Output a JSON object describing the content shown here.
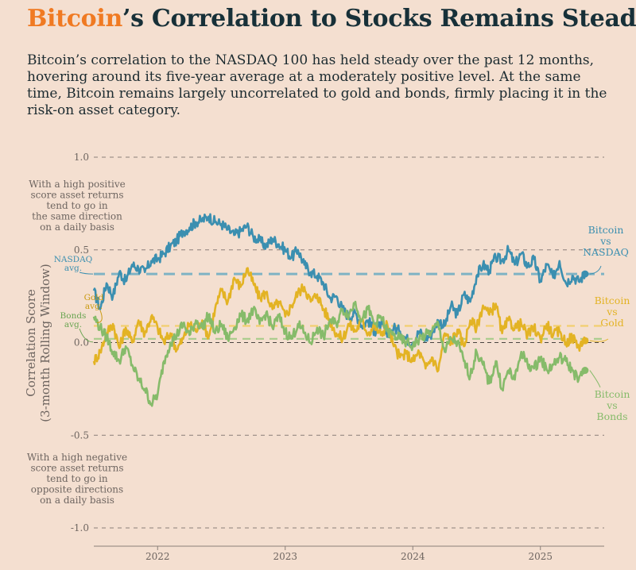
{
  "header": {
    "title_accent": "Bitcoin",
    "title_rest": "’s Correlation to Stocks Remains Steady",
    "subtitle": "Bitcoin’s correlation to the NASDAQ 100 has held steady over the past 12 months, hovering around its five-year average at a moderately positive level. At the same time, Bitcoin remains largely uncorrelated to gold and bonds, firmly placing it in the risk-on asset category."
  },
  "annotations": {
    "positive_note": [
      "With a high positive",
      "score asset returns",
      "tend to go in",
      "the same direction",
      "on a daily basis"
    ],
    "negative_note": [
      "With a high negative",
      "score asset returns",
      "tend to go in",
      "opposite directions",
      "on a daily basis"
    ],
    "nasdaq_avg": [
      "NASDAQ",
      "avg."
    ],
    "gold_avg": [
      "Gold",
      "avg."
    ],
    "bonds_avg": [
      "Bonds",
      "avg."
    ]
  },
  "chart_data": {
    "type": "line",
    "ylabel_lines": [
      "Correlation Score",
      "(3-month Rolling Window)"
    ],
    "ylim": [
      -1.0,
      1.0
    ],
    "yticks": [
      1.0,
      0.5,
      0.0,
      -0.5,
      -1.0
    ],
    "ytick_labels": [
      "1.0",
      "0.5",
      "0.0",
      "-0.5",
      "-1.0"
    ],
    "xlim": [
      2021.5,
      2025.5
    ],
    "xticks": [
      2022,
      2023,
      2024,
      2025
    ],
    "xtick_labels": [
      "2022",
      "2023",
      "2024",
      "2025"
    ],
    "grid": "horizontal dashed",
    "averages": [
      {
        "name": "NASDAQ avg.",
        "value": 0.37,
        "color": "#7fb3c4"
      },
      {
        "name": "Gold avg.",
        "value": 0.09,
        "color": "#f2cf6f"
      },
      {
        "name": "Bonds avg.",
        "value": 0.02,
        "color": "#a8cc8a"
      }
    ],
    "series": [
      {
        "name": "Bitcoin vs NASDAQ",
        "label_lines": [
          "Bitcoin",
          "vs",
          "NASDAQ"
        ],
        "color": "#3b8fb0",
        "x": [
          2021.5,
          2021.55,
          2021.6,
          2021.65,
          2021.7,
          2021.75,
          2021.8,
          2021.85,
          2021.9,
          2021.95,
          2022.0,
          2022.05,
          2022.1,
          2022.15,
          2022.2,
          2022.25,
          2022.3,
          2022.35,
          2022.4,
          2022.45,
          2022.5,
          2022.55,
          2022.6,
          2022.65,
          2022.7,
          2022.75,
          2022.8,
          2022.85,
          2022.9,
          2022.95,
          2023.0,
          2023.05,
          2023.1,
          2023.15,
          2023.2,
          2023.25,
          2023.3,
          2023.35,
          2023.4,
          2023.45,
          2023.5,
          2023.55,
          2023.6,
          2023.65,
          2023.7,
          2023.75,
          2023.8,
          2023.85,
          2023.9,
          2023.95,
          2024.0,
          2024.05,
          2024.1,
          2024.15,
          2024.2,
          2024.25,
          2024.3,
          2024.35,
          2024.4,
          2024.45,
          2024.5,
          2024.55,
          2024.6,
          2024.65,
          2024.7,
          2024.75,
          2024.8,
          2024.85,
          2024.9,
          2024.95,
          2025.0,
          2025.05,
          2025.1,
          2025.15,
          2025.2,
          2025.25,
          2025.3,
          2025.35
        ],
        "y": [
          0.28,
          0.18,
          0.32,
          0.25,
          0.38,
          0.33,
          0.42,
          0.4,
          0.38,
          0.44,
          0.45,
          0.48,
          0.52,
          0.55,
          0.6,
          0.62,
          0.65,
          0.66,
          0.68,
          0.65,
          0.64,
          0.61,
          0.58,
          0.6,
          0.63,
          0.57,
          0.55,
          0.52,
          0.56,
          0.53,
          0.5,
          0.46,
          0.5,
          0.42,
          0.38,
          0.36,
          0.32,
          0.24,
          0.25,
          0.18,
          0.14,
          0.16,
          0.09,
          0.12,
          0.06,
          0.1,
          0.03,
          0.08,
          0.06,
          0.02,
          0.0,
          0.06,
          0.02,
          0.05,
          0.12,
          0.09,
          0.2,
          0.15,
          0.26,
          0.22,
          0.36,
          0.42,
          0.39,
          0.46,
          0.44,
          0.5,
          0.42,
          0.48,
          0.41,
          0.45,
          0.33,
          0.42,
          0.35,
          0.44,
          0.32,
          0.36,
          0.33,
          0.37
        ]
      },
      {
        "name": "Bitcoin vs Gold",
        "label_lines": [
          "Bitcoin",
          "vs",
          "Gold"
        ],
        "color": "#e3b324",
        "x": [
          2021.5,
          2021.55,
          2021.6,
          2021.65,
          2021.7,
          2021.75,
          2021.8,
          2021.85,
          2021.9,
          2021.95,
          2022.0,
          2022.05,
          2022.1,
          2022.15,
          2022.2,
          2022.25,
          2022.3,
          2022.35,
          2022.4,
          2022.45,
          2022.5,
          2022.55,
          2022.6,
          2022.65,
          2022.7,
          2022.75,
          2022.8,
          2022.85,
          2022.9,
          2022.95,
          2023.0,
          2023.05,
          2023.1,
          2023.15,
          2023.2,
          2023.25,
          2023.3,
          2023.35,
          2023.4,
          2023.45,
          2023.5,
          2023.55,
          2023.6,
          2023.65,
          2023.7,
          2023.75,
          2023.8,
          2023.85,
          2023.9,
          2023.95,
          2024.0,
          2024.05,
          2024.1,
          2024.15,
          2024.2,
          2024.25,
          2024.3,
          2024.35,
          2024.4,
          2024.45,
          2024.5,
          2024.55,
          2024.6,
          2024.65,
          2024.7,
          2024.75,
          2024.8,
          2024.85,
          2024.9,
          2024.95,
          2025.0,
          2025.05,
          2025.1,
          2025.15,
          2025.2,
          2025.25,
          2025.3,
          2025.35
        ],
        "y": [
          -0.1,
          -0.05,
          0.05,
          0.1,
          -0.03,
          0.08,
          0.0,
          0.12,
          0.05,
          0.14,
          0.08,
          0.0,
          0.05,
          -0.04,
          0.02,
          0.1,
          0.06,
          0.12,
          0.03,
          0.18,
          0.28,
          0.22,
          0.35,
          0.3,
          0.4,
          0.32,
          0.24,
          0.27,
          0.18,
          0.22,
          0.14,
          0.2,
          0.27,
          0.3,
          0.22,
          0.26,
          0.18,
          0.12,
          0.05,
          0.02,
          0.1,
          0.06,
          0.12,
          0.05,
          0.09,
          0.04,
          0.1,
          -0.02,
          -0.08,
          -0.06,
          -0.1,
          -0.05,
          -0.14,
          -0.08,
          -0.15,
          0.05,
          0.0,
          0.07,
          -0.02,
          0.12,
          0.08,
          0.2,
          0.15,
          0.21,
          0.05,
          0.12,
          0.08,
          0.1,
          0.04,
          0.08,
          0.02,
          0.1,
          0.04,
          0.06,
          0.0,
          0.03,
          -0.02,
          0.01
        ]
      },
      {
        "name": "Bitcoin vs Bonds",
        "label_lines": [
          "Bitcoin",
          "vs",
          "Bonds"
        ],
        "color": "#86bb6a",
        "x": [
          2021.5,
          2021.55,
          2021.6,
          2021.65,
          2021.7,
          2021.75,
          2021.8,
          2021.85,
          2021.9,
          2021.95,
          2022.0,
          2022.05,
          2022.1,
          2022.15,
          2022.2,
          2022.25,
          2022.3,
          2022.35,
          2022.4,
          2022.45,
          2022.5,
          2022.55,
          2022.6,
          2022.65,
          2022.7,
          2022.75,
          2022.8,
          2022.85,
          2022.9,
          2022.95,
          2023.0,
          2023.05,
          2023.1,
          2023.15,
          2023.2,
          2023.25,
          2023.3,
          2023.35,
          2023.4,
          2023.45,
          2023.5,
          2023.55,
          2023.6,
          2023.65,
          2023.7,
          2023.75,
          2023.8,
          2023.85,
          2023.9,
          2023.95,
          2024.0,
          2024.05,
          2024.1,
          2024.15,
          2024.2,
          2024.25,
          2024.3,
          2024.35,
          2024.4,
          2024.45,
          2024.5,
          2024.55,
          2024.6,
          2024.65,
          2024.7,
          2024.75,
          2024.8,
          2024.85,
          2024.9,
          2024.95,
          2025.0,
          2025.05,
          2025.1,
          2025.15,
          2025.2,
          2025.25,
          2025.3,
          2025.35
        ],
        "y": [
          0.14,
          0.08,
          0.03,
          -0.05,
          -0.1,
          -0.02,
          -0.12,
          -0.2,
          -0.25,
          -0.33,
          -0.28,
          -0.1,
          0.0,
          0.04,
          0.1,
          0.04,
          0.12,
          0.08,
          0.15,
          0.05,
          0.1,
          0.02,
          0.08,
          0.15,
          0.12,
          0.18,
          0.1,
          0.16,
          0.08,
          0.14,
          0.06,
          0.02,
          0.1,
          0.05,
          0.0,
          0.08,
          0.03,
          0.12,
          0.1,
          0.18,
          0.15,
          0.22,
          0.12,
          0.18,
          0.1,
          0.14,
          0.06,
          0.04,
          0.02,
          0.0,
          -0.02,
          0.02,
          0.04,
          0.06,
          0.1,
          -0.05,
          0.02,
          0.0,
          -0.1,
          -0.18,
          -0.05,
          -0.12,
          -0.22,
          -0.1,
          -0.25,
          -0.15,
          -0.2,
          -0.05,
          -0.12,
          -0.14,
          -0.08,
          -0.15,
          -0.12,
          -0.08,
          -0.1,
          -0.15,
          -0.2,
          -0.15
        ]
      }
    ]
  }
}
